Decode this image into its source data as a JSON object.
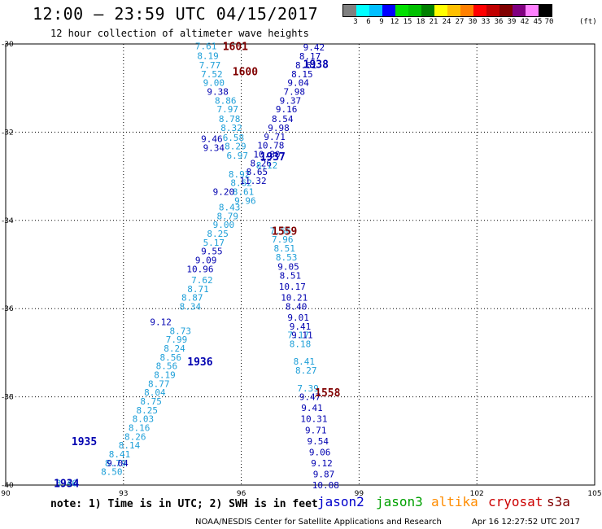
{
  "header": {
    "title": "12:00 – 23:59 UTC 04/15/2017",
    "subtitle": "12 hour collection of altimeter wave heights"
  },
  "legend": {
    "colors": [
      "#808080",
      "#00ffff",
      "#00bfff",
      "#0000ff",
      "#00e000",
      "#00c000",
      "#008000",
      "#ffff00",
      "#ffc000",
      "#ff8000",
      "#ff0000",
      "#c00000",
      "#800000",
      "#800080",
      "#ff80ff",
      "#000000"
    ],
    "labels": [
      "3",
      "6",
      "9",
      "12",
      "15",
      "18",
      "21",
      "24",
      "27",
      "30",
      "33",
      "36",
      "39",
      "42",
      "45",
      "70"
    ],
    "unit": "(ft)"
  },
  "footer": {
    "note": "note: 1) Time is in UTC; 2) SWH is in feet",
    "satellites": [
      {
        "name": "jason2",
        "color": "#0000cc"
      },
      {
        "name": "jason3",
        "color": "#00a000"
      },
      {
        "name": "altika",
        "color": "#ff8c00"
      },
      {
        "name": "cryosat",
        "color": "#cc0000"
      },
      {
        "name": "s3a",
        "color": "#800000"
      }
    ],
    "credit": "NOAA/NESDIS Center for Satellite Applications and Research",
    "timestamp": "Apr 16 12:27:52 UTC 2017"
  },
  "chart_data": {
    "type": "scatter",
    "xlim": [
      90,
      105
    ],
    "ylim": [
      -40,
      -30
    ],
    "x_ticks": [
      "90",
      "93",
      "96",
      "99",
      "102",
      "105"
    ],
    "y_ticks": [
      "-30",
      "-32",
      "-34",
      "-36",
      "-38",
      "-40"
    ],
    "grid": true,
    "colors": {
      "lightblue": "#1e9fd8",
      "darkblue": "#0000b0",
      "maroon": "#800000"
    },
    "series": [
      {
        "name": "jason2",
        "color": "#0000b0",
        "points": [
          [
            94.95,
            -37.2,
            "1936"
          ],
          [
            92.0,
            -39.0,
            "1935"
          ],
          [
            91.55,
            -39.95,
            "1934"
          ],
          [
            96.8,
            -32.55,
            "1937"
          ],
          [
            97.9,
            -30.45,
            "1938"
          ]
        ]
      },
      {
        "name": "s3a",
        "color": "#800000",
        "points": [
          [
            95.85,
            -30.05,
            "1601"
          ],
          [
            96.1,
            -30.62,
            "1600"
          ],
          [
            97.1,
            -34.23,
            "1559"
          ],
          [
            98.2,
            -37.9,
            "1558"
          ]
        ]
      }
    ],
    "tracks": [
      {
        "color": "#1e9fd8",
        "points": [
          [
            95.1,
            -30.05,
            "7.61"
          ],
          [
            95.15,
            -30.27,
            "8.19"
          ],
          [
            95.2,
            -30.48,
            "7.77"
          ],
          [
            95.25,
            -30.68,
            "7.52"
          ],
          [
            95.3,
            -30.88,
            "9.00"
          ],
          [
            95.6,
            -31.28,
            "8.86"
          ],
          [
            95.65,
            -31.48,
            "7.97"
          ],
          [
            95.7,
            -31.7,
            "8.78"
          ],
          [
            95.75,
            -31.9,
            "8.32"
          ],
          [
            95.8,
            -32.12,
            "6.58"
          ],
          [
            95.85,
            -32.32,
            "8.29"
          ],
          [
            95.9,
            -32.53,
            "6.97"
          ],
          [
            95.95,
            -32.95,
            "8.92"
          ],
          [
            96.0,
            -33.15,
            "8.62"
          ],
          [
            96.05,
            -33.35,
            "8.61"
          ],
          [
            96.1,
            -33.55,
            "9.96"
          ],
          [
            95.7,
            -33.7,
            "8.43"
          ],
          [
            95.65,
            -33.9,
            "8.79"
          ],
          [
            95.55,
            -34.1,
            "9.00"
          ],
          [
            95.4,
            -34.3,
            "8.25"
          ],
          [
            95.3,
            -34.5,
            "5.17"
          ],
          [
            95.0,
            -35.35,
            "7.62"
          ],
          [
            94.9,
            -35.55,
            "8.71"
          ],
          [
            94.75,
            -35.75,
            "8.87"
          ],
          [
            94.7,
            -35.95,
            "8.34"
          ],
          [
            94.45,
            -36.5,
            "8.73"
          ],
          [
            94.35,
            -36.7,
            "7.99"
          ],
          [
            94.3,
            -36.9,
            "8.24"
          ],
          [
            94.2,
            -37.1,
            "8.56"
          ],
          [
            94.1,
            -37.3,
            "8.56"
          ],
          [
            94.05,
            -37.5,
            "8.19"
          ],
          [
            93.9,
            -37.7,
            "8.77"
          ],
          [
            93.8,
            -37.9,
            "8.04"
          ],
          [
            93.7,
            -38.1,
            "8.75"
          ],
          [
            93.6,
            -38.3,
            "8.25"
          ],
          [
            93.5,
            -38.5,
            "8.03"
          ],
          [
            93.4,
            -38.7,
            "8.16"
          ],
          [
            93.3,
            -38.9,
            "8.26"
          ],
          [
            93.15,
            -39.1,
            "8.14"
          ],
          [
            92.9,
            -39.3,
            "8.41"
          ],
          [
            92.8,
            -39.5,
            "8.79"
          ],
          [
            92.7,
            -39.7,
            "8.50"
          ],
          [
            91.55,
            -39.95,
            "8.46"
          ],
          [
            97.0,
            -34.23,
            "7.56"
          ],
          [
            97.05,
            -34.43,
            "7.96"
          ],
          [
            97.1,
            -34.63,
            "8.51"
          ],
          [
            97.15,
            -34.83,
            "8.53"
          ],
          [
            97.45,
            -36.6,
            "7.17"
          ],
          [
            97.5,
            -36.8,
            "8.18"
          ],
          [
            97.6,
            -37.2,
            "8.41"
          ],
          [
            97.65,
            -37.4,
            "8.27"
          ],
          [
            97.7,
            -37.8,
            "7.39"
          ],
          [
            96.65,
            -32.75,
            "8.12"
          ]
        ]
      },
      {
        "color": "#0000b0",
        "points": [
          [
            95.4,
            -31.08,
            "9.38"
          ],
          [
            95.25,
            -32.15,
            "9.46"
          ],
          [
            95.3,
            -32.35,
            "9.34"
          ],
          [
            95.55,
            -33.35,
            "9.20"
          ],
          [
            95.25,
            -34.7,
            "9.55"
          ],
          [
            95.1,
            -34.9,
            "9.09"
          ],
          [
            94.95,
            -35.1,
            "10.96"
          ],
          [
            93.95,
            -36.3,
            "9.12"
          ],
          [
            92.85,
            -39.5,
            "9.04"
          ],
          [
            97.85,
            -30.07,
            "9.42"
          ],
          [
            97.75,
            -30.28,
            "8.17"
          ],
          [
            97.65,
            -30.48,
            "8.61"
          ],
          [
            97.55,
            -30.68,
            "8.15"
          ],
          [
            97.45,
            -30.88,
            "9.04"
          ],
          [
            97.35,
            -31.08,
            "7.98"
          ],
          [
            97.25,
            -31.28,
            "9.37"
          ],
          [
            97.15,
            -31.48,
            "9.16"
          ],
          [
            97.05,
            -31.7,
            "8.54"
          ],
          [
            96.95,
            -31.9,
            "9.98"
          ],
          [
            96.85,
            -32.1,
            "9.71"
          ],
          [
            96.75,
            -32.3,
            "10.78"
          ],
          [
            96.65,
            -32.5,
            "10.80"
          ],
          [
            96.5,
            -32.7,
            "8.26"
          ],
          [
            96.4,
            -32.9,
            "8.65"
          ],
          [
            96.3,
            -33.1,
            "11.32"
          ],
          [
            97.2,
            -35.05,
            "9.05"
          ],
          [
            97.25,
            -35.25,
            "8.51"
          ],
          [
            97.3,
            -35.5,
            "10.17"
          ],
          [
            97.35,
            -35.75,
            "10.21"
          ],
          [
            97.4,
            -35.95,
            "8.40"
          ],
          [
            97.45,
            -36.2,
            "9.01"
          ],
          [
            97.5,
            -36.4,
            "9.41"
          ],
          [
            97.55,
            -36.6,
            "9.11"
          ],
          [
            97.75,
            -38.0,
            "9.47"
          ],
          [
            97.8,
            -38.25,
            "9.41"
          ],
          [
            97.85,
            -38.5,
            "10.31"
          ],
          [
            97.9,
            -38.75,
            "9.71"
          ],
          [
            97.95,
            -39.0,
            "9.54"
          ],
          [
            98.0,
            -39.25,
            "9.06"
          ],
          [
            98.05,
            -39.5,
            "9.12"
          ],
          [
            98.1,
            -39.75,
            "9.87"
          ],
          [
            98.15,
            -40.0,
            "10.08"
          ]
        ]
      }
    ]
  }
}
